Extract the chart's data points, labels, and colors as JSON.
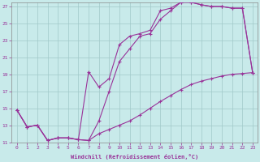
{
  "xlabel": "Windchill (Refroidissement éolien,°C)",
  "xlim": [
    -0.5,
    23.5
  ],
  "ylim": [
    11,
    27.5
  ],
  "xticks": [
    0,
    1,
    2,
    3,
    4,
    5,
    6,
    7,
    8,
    9,
    10,
    11,
    12,
    13,
    14,
    15,
    16,
    17,
    18,
    19,
    20,
    21,
    22,
    23
  ],
  "yticks": [
    11,
    13,
    15,
    17,
    19,
    21,
    23,
    25,
    27
  ],
  "bg_color": "#c8eaea",
  "grid_color": "#a0c8c8",
  "line_color": "#993399",
  "curve1_x": [
    0,
    1,
    2,
    3,
    4,
    5,
    6,
    7,
    8,
    9,
    10,
    11,
    12,
    13,
    14,
    15,
    16,
    17,
    18,
    19,
    20,
    21,
    22,
    23
  ],
  "curve1_y": [
    14.8,
    12.8,
    13.0,
    11.2,
    11.5,
    11.5,
    11.3,
    11.2,
    13.5,
    17.0,
    20.5,
    22.0,
    23.5,
    23.8,
    25.5,
    26.5,
    27.5,
    27.5,
    27.2,
    27.0,
    27.0,
    26.8,
    26.8,
    19.2
  ],
  "curve2_x": [
    0,
    1,
    2,
    3,
    4,
    5,
    6,
    7,
    8,
    9,
    10,
    11,
    12,
    13,
    14,
    15,
    16,
    17,
    18,
    19,
    20,
    21,
    22,
    23
  ],
  "curve2_y": [
    14.8,
    12.8,
    13.0,
    11.2,
    11.5,
    11.5,
    11.3,
    19.3,
    17.5,
    18.5,
    22.5,
    23.5,
    23.8,
    24.2,
    26.5,
    26.8,
    27.5,
    27.5,
    27.2,
    27.0,
    27.0,
    26.8,
    26.8,
    19.2
  ],
  "curve3_x": [
    0,
    1,
    2,
    3,
    4,
    5,
    6,
    7,
    8,
    9,
    10,
    11,
    12,
    13,
    14,
    15,
    16,
    17,
    18,
    19,
    20,
    21,
    22,
    23
  ],
  "curve3_y": [
    14.8,
    12.8,
    13.0,
    11.2,
    11.5,
    11.5,
    11.3,
    11.2,
    12.0,
    12.5,
    13.0,
    13.5,
    14.2,
    15.0,
    15.8,
    16.5,
    17.2,
    17.8,
    18.2,
    18.5,
    18.8,
    19.0,
    19.1,
    19.2
  ]
}
